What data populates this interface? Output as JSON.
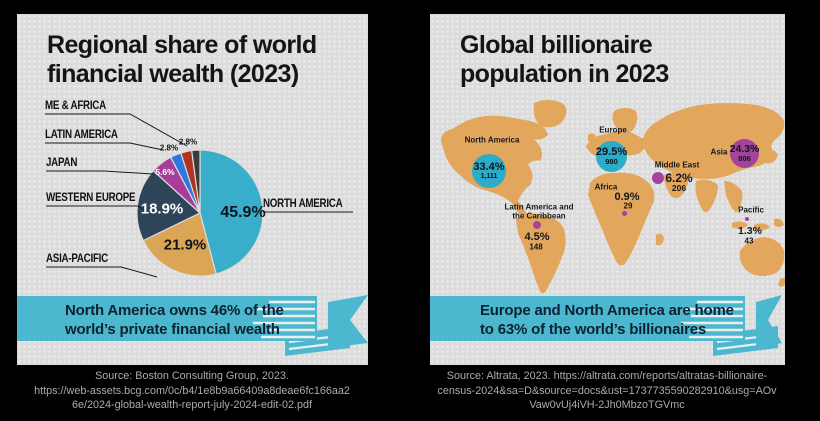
{
  "colors": {
    "background": "#000000",
    "panel_bg": "#dcdcdc",
    "banner": "#4cb8d0",
    "banner_text": "#0d2230",
    "map_land": "#e2a65c",
    "bubble_cyan": "#2bacc8",
    "bubble_purple": "#a3439c",
    "source_text": "#ababab"
  },
  "left_panel": {
    "title_lines": [
      "Regional share of world",
      "financial wealth (2023)"
    ],
    "pie_callouts": {
      "me_africa": "ME & AFRICA",
      "latin_america": "LATIN AMERICA",
      "japan": "JAPAN",
      "western_europe": "WESTERN EUROPE",
      "asia_pacific": "ASIA-PACIFIC",
      "north_america": "NORTH AMERICA"
    },
    "pie_value_labels": {
      "north_america": "45.9%",
      "asia_pacific": "21.9%",
      "western_europe": "18.9%",
      "japan": "5.6%",
      "latin_america": "2.8%",
      "me_africa": "2.8%"
    },
    "banner_lines": [
      "North America owns 46% of the",
      "world’s private financial wealth"
    ],
    "source_lines": [
      "Source: Boston Consulting Group, 2023.",
      "https://web-assets.bcg.com/0c/b4/1e8b9a66409a8deae6fc166aa2",
      "6e/2024-global-wealth-report-july-2024-edit-02.pdf"
    ]
  },
  "right_panel": {
    "title_lines": [
      "Global billionaire",
      "population in 2023"
    ],
    "regions": [
      {
        "name": "North America",
        "pct": "33.4%",
        "count": "1,111"
      },
      {
        "name": "Europe",
        "pct": "29.5%",
        "count": "980"
      },
      {
        "name": "Middle East",
        "pct": "6.2%",
        "count": "206"
      },
      {
        "name": "Asia",
        "pct": "24.3%",
        "count": "806"
      },
      {
        "name": "Africa",
        "pct": "0.9%",
        "count": "29"
      },
      {
        "name": "Latin America and",
        "name2": "the Caribbean",
        "pct": "4.5%",
        "count": "148"
      },
      {
        "name": "Pacific",
        "pct": "1.3%",
        "count": "43"
      }
    ],
    "banner_lines": [
      "Europe and North America are home",
      "to 63% of the world’s billionaires"
    ],
    "source_lines": [
      "Source: Altrata, 2023. https://altrata.com/reports/altratas-billionaire-",
      "census-2024&sa=D&source=docs&ust=1737735590282910&usg=AOv",
      "Vaw0vUj4iVH-2Jh0MbzoTGVmc"
    ]
  },
  "chart_data": [
    {
      "type": "pie",
      "title": "Regional share of world financial wealth (2023)",
      "labels": [
        "North America",
        "Asia-Pacific",
        "Western Europe",
        "Japan",
        "Latin America",
        "ME & Africa",
        "Other (unlabeled)"
      ],
      "values": [
        45.9,
        21.9,
        18.9,
        5.6,
        2.8,
        2.8,
        2.1
      ],
      "colors": [
        "#38aecb",
        "#dba556",
        "#2e4459",
        "#a73c99",
        "#2c78df",
        "#b23320",
        "#3d3a39"
      ],
      "unit": "%",
      "start_angle_deg": 0,
      "direction": "clockwise",
      "annotation": "North America owns 46% of the world’s private financial wealth"
    },
    {
      "type": "table",
      "subtype": "world-map-bubbles",
      "title": "Global billionaire population in 2023",
      "columns": [
        "Region",
        "Share of billionaires",
        "Number of billionaires"
      ],
      "rows": [
        [
          "North America",
          "33.4%",
          1111
        ],
        [
          "Europe",
          "29.5%",
          980
        ],
        [
          "Asia",
          "24.3%",
          806
        ],
        [
          "Middle East",
          "6.2%",
          206
        ],
        [
          "Latin America and the Caribbean",
          "4.5%",
          148
        ],
        [
          "Pacific",
          "1.3%",
          43
        ],
        [
          "Africa",
          "0.9%",
          29
        ]
      ],
      "bubble_colors": {
        "North America": "#2bacc8",
        "Europe": "#2bacc8",
        "others": "#a3439c"
      },
      "annotation": "Europe and North America are home to 63% of the world’s billionaires"
    }
  ]
}
